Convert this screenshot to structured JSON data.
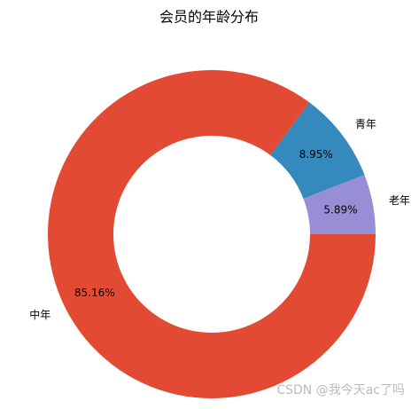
{
  "chart_data": {
    "type": "donut",
    "title": "会员的年龄分布",
    "categories": [
      "老年",
      "青年",
      "中年"
    ],
    "values": [
      5.89,
      8.95,
      85.16
    ],
    "value_labels": [
      "5.89%",
      "8.95%",
      "85.16%"
    ],
    "colors": [
      "#988ED5",
      "#348ABD",
      "#E24A33"
    ]
  },
  "watermark": "CSDN @我今天ac了吗"
}
